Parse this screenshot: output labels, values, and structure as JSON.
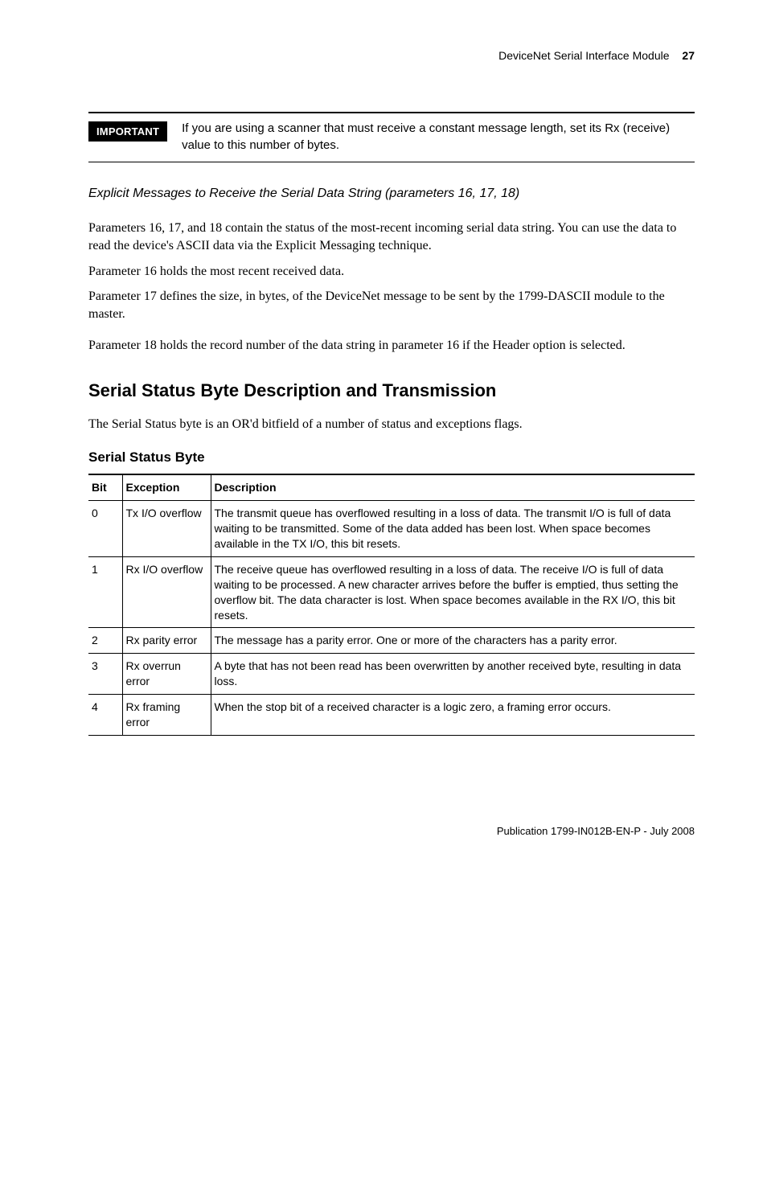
{
  "running_head": {
    "title": "DeviceNet Serial Interface Module",
    "page": "27"
  },
  "important": {
    "badge": "IMPORTANT",
    "text": "If you are using a scanner that must receive a constant message length, set its Rx (receive) value to this number of bytes."
  },
  "subsection_title": "Explicit Messages to Receive the Serial Data String (parameters 16, 17, 18)",
  "paragraphs": {
    "p1": "Parameters 16, 17, and 18 contain the status of the most-recent incoming serial data string. You can use the data to read the device's ASCII data via the Explicit Messaging technique.",
    "p2": "Parameter 16 holds the most recent received data.",
    "p3": "Parameter 17 defines the size, in bytes, of the DeviceNet message to be sent by the 1799-DASCII module to the master.",
    "p4": "Parameter 18 holds the record number of the data string in parameter 16 if the Header option is selected."
  },
  "section_title": "Serial Status Byte Description and Transmission",
  "section_lead": "The Serial Status byte is an OR'd bitfield of a number of status and exceptions flags.",
  "table": {
    "caption": "Serial Status Byte",
    "headers": {
      "bit": "Bit",
      "exception": "Exception",
      "description": "Description"
    },
    "rows": [
      {
        "bit": "0",
        "exception": "Tx I/O overflow",
        "description": "The transmit queue has overflowed resulting in a loss of data.  The transmit I/O is full of data waiting to be transmitted.  Some of the data added has been lost. When space becomes available in the TX I/O, this bit resets."
      },
      {
        "bit": "1",
        "exception": "Rx I/O overflow",
        "description": "The receive queue has overflowed resulting in a loss of data.  The receive I/O is full of data waiting to be processed.  A new character arrives before the buffer is emptied, thus setting the overflow bit. The data character is lost. When space becomes available in the RX I/O, this bit resets."
      },
      {
        "bit": "2",
        "exception": "Rx parity error",
        "description": "The message has a parity error. One or more of the characters has a parity error."
      },
      {
        "bit": "3",
        "exception": "Rx overrun error",
        "description": "A byte that has not been read has been overwritten by another received byte, resulting in data loss."
      },
      {
        "bit": "4",
        "exception": "Rx framing error",
        "description": "When the stop bit of a received character is a logic zero, a framing error occurs."
      }
    ]
  },
  "footer": "Publication 1799-IN012B-EN-P - July 2008",
  "colors": {
    "text": "#000000",
    "background": "#ffffff",
    "badge_bg": "#000000",
    "badge_fg": "#ffffff",
    "rule": "#000000"
  }
}
